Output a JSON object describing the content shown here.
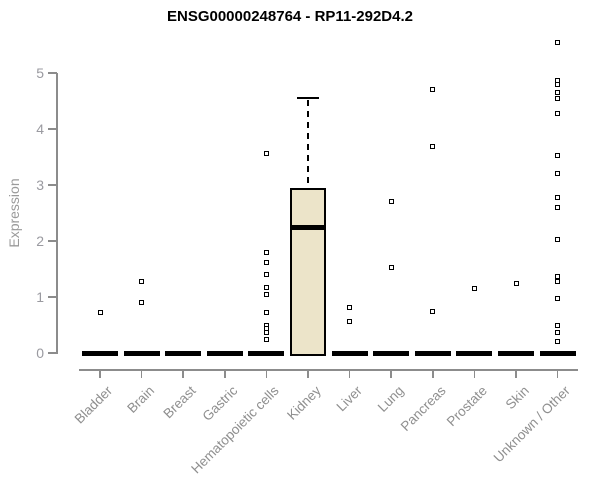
{
  "chart": {
    "title": "ENSG00000248764 - RP11-292D4.2",
    "ylabel": "Expression"
  },
  "chart_data": {
    "type": "boxplot",
    "title": "ENSG00000248764 - RP11-292D4.2",
    "xlabel": "",
    "ylabel": "Expression",
    "ylim": [
      0,
      5
    ],
    "yticks": [
      0,
      1,
      2,
      3,
      4,
      5
    ],
    "grid": false,
    "legend": false,
    "categories": [
      "Bladder",
      "Brain",
      "Breast",
      "Gastric",
      "Hematopoietic cells",
      "Kidney",
      "Liver",
      "Lung",
      "Pancreas",
      "Prostate",
      "Skin",
      "Unknown / Other"
    ],
    "boxes": [
      {
        "category": "Bladder",
        "whisker_low": 0,
        "q1": 0,
        "median": 0,
        "q3": 0,
        "whisker_high": 0
      },
      {
        "category": "Brain",
        "whisker_low": 0,
        "q1": 0,
        "median": 0,
        "q3": 0,
        "whisker_high": 0
      },
      {
        "category": "Breast",
        "whisker_low": 0,
        "q1": 0,
        "median": 0,
        "q3": 0,
        "whisker_high": 0
      },
      {
        "category": "Gastric",
        "whisker_low": 0,
        "q1": 0,
        "median": 0,
        "q3": 0,
        "whisker_high": 0
      },
      {
        "category": "Hematopoietic cells",
        "whisker_low": 0,
        "q1": 0,
        "median": 0,
        "q3": 0,
        "whisker_high": 0
      },
      {
        "category": "Kidney",
        "whisker_low": 0,
        "q1": 0,
        "median": 2.24,
        "q3": 2.95,
        "whisker_high": 4.55
      },
      {
        "category": "Liver",
        "whisker_low": 0,
        "q1": 0,
        "median": 0,
        "q3": 0,
        "whisker_high": 0
      },
      {
        "category": "Lung",
        "whisker_low": 0,
        "q1": 0,
        "median": 0,
        "q3": 0,
        "whisker_high": 0
      },
      {
        "category": "Pancreas",
        "whisker_low": 0,
        "q1": 0,
        "median": 0,
        "q3": 0,
        "whisker_high": 0
      },
      {
        "category": "Prostate",
        "whisker_low": 0,
        "q1": 0,
        "median": 0,
        "q3": 0,
        "whisker_high": 0
      },
      {
        "category": "Skin",
        "whisker_low": 0,
        "q1": 0,
        "median": 0,
        "q3": 0,
        "whisker_high": 0
      },
      {
        "category": "Unknown / Other",
        "whisker_low": 0,
        "q1": 0,
        "median": 0,
        "q3": 0,
        "whisker_high": 0
      }
    ],
    "outlier_points": [
      [
        0.73
      ],
      [
        1.28,
        0.9
      ],
      [],
      [],
      [
        3.57,
        1.79,
        1.61,
        1.4,
        1.17,
        1.05,
        0.72,
        0.5,
        0.43,
        0.36,
        0.25
      ],
      [],
      [
        0.82,
        0.57
      ],
      [
        2.71,
        1.53
      ],
      [
        4.71,
        3.68,
        0.74
      ],
      [
        1.15
      ],
      [
        1.25
      ],
      [
        5.55,
        4.86,
        4.8,
        4.66,
        4.55,
        4.27,
        3.52,
        3.21,
        2.78,
        2.6,
        2.02,
        1.37,
        1.28,
        0.98,
        0.5,
        0.36,
        0.21
      ]
    ],
    "colors": {
      "box_fill": "#ECE4C9",
      "box_stroke": "#000000",
      "median": "#000000",
      "point": "#000000",
      "axis": "#8C8C8C",
      "tick_label": "#9A9AA0",
      "title": "#000000"
    }
  }
}
